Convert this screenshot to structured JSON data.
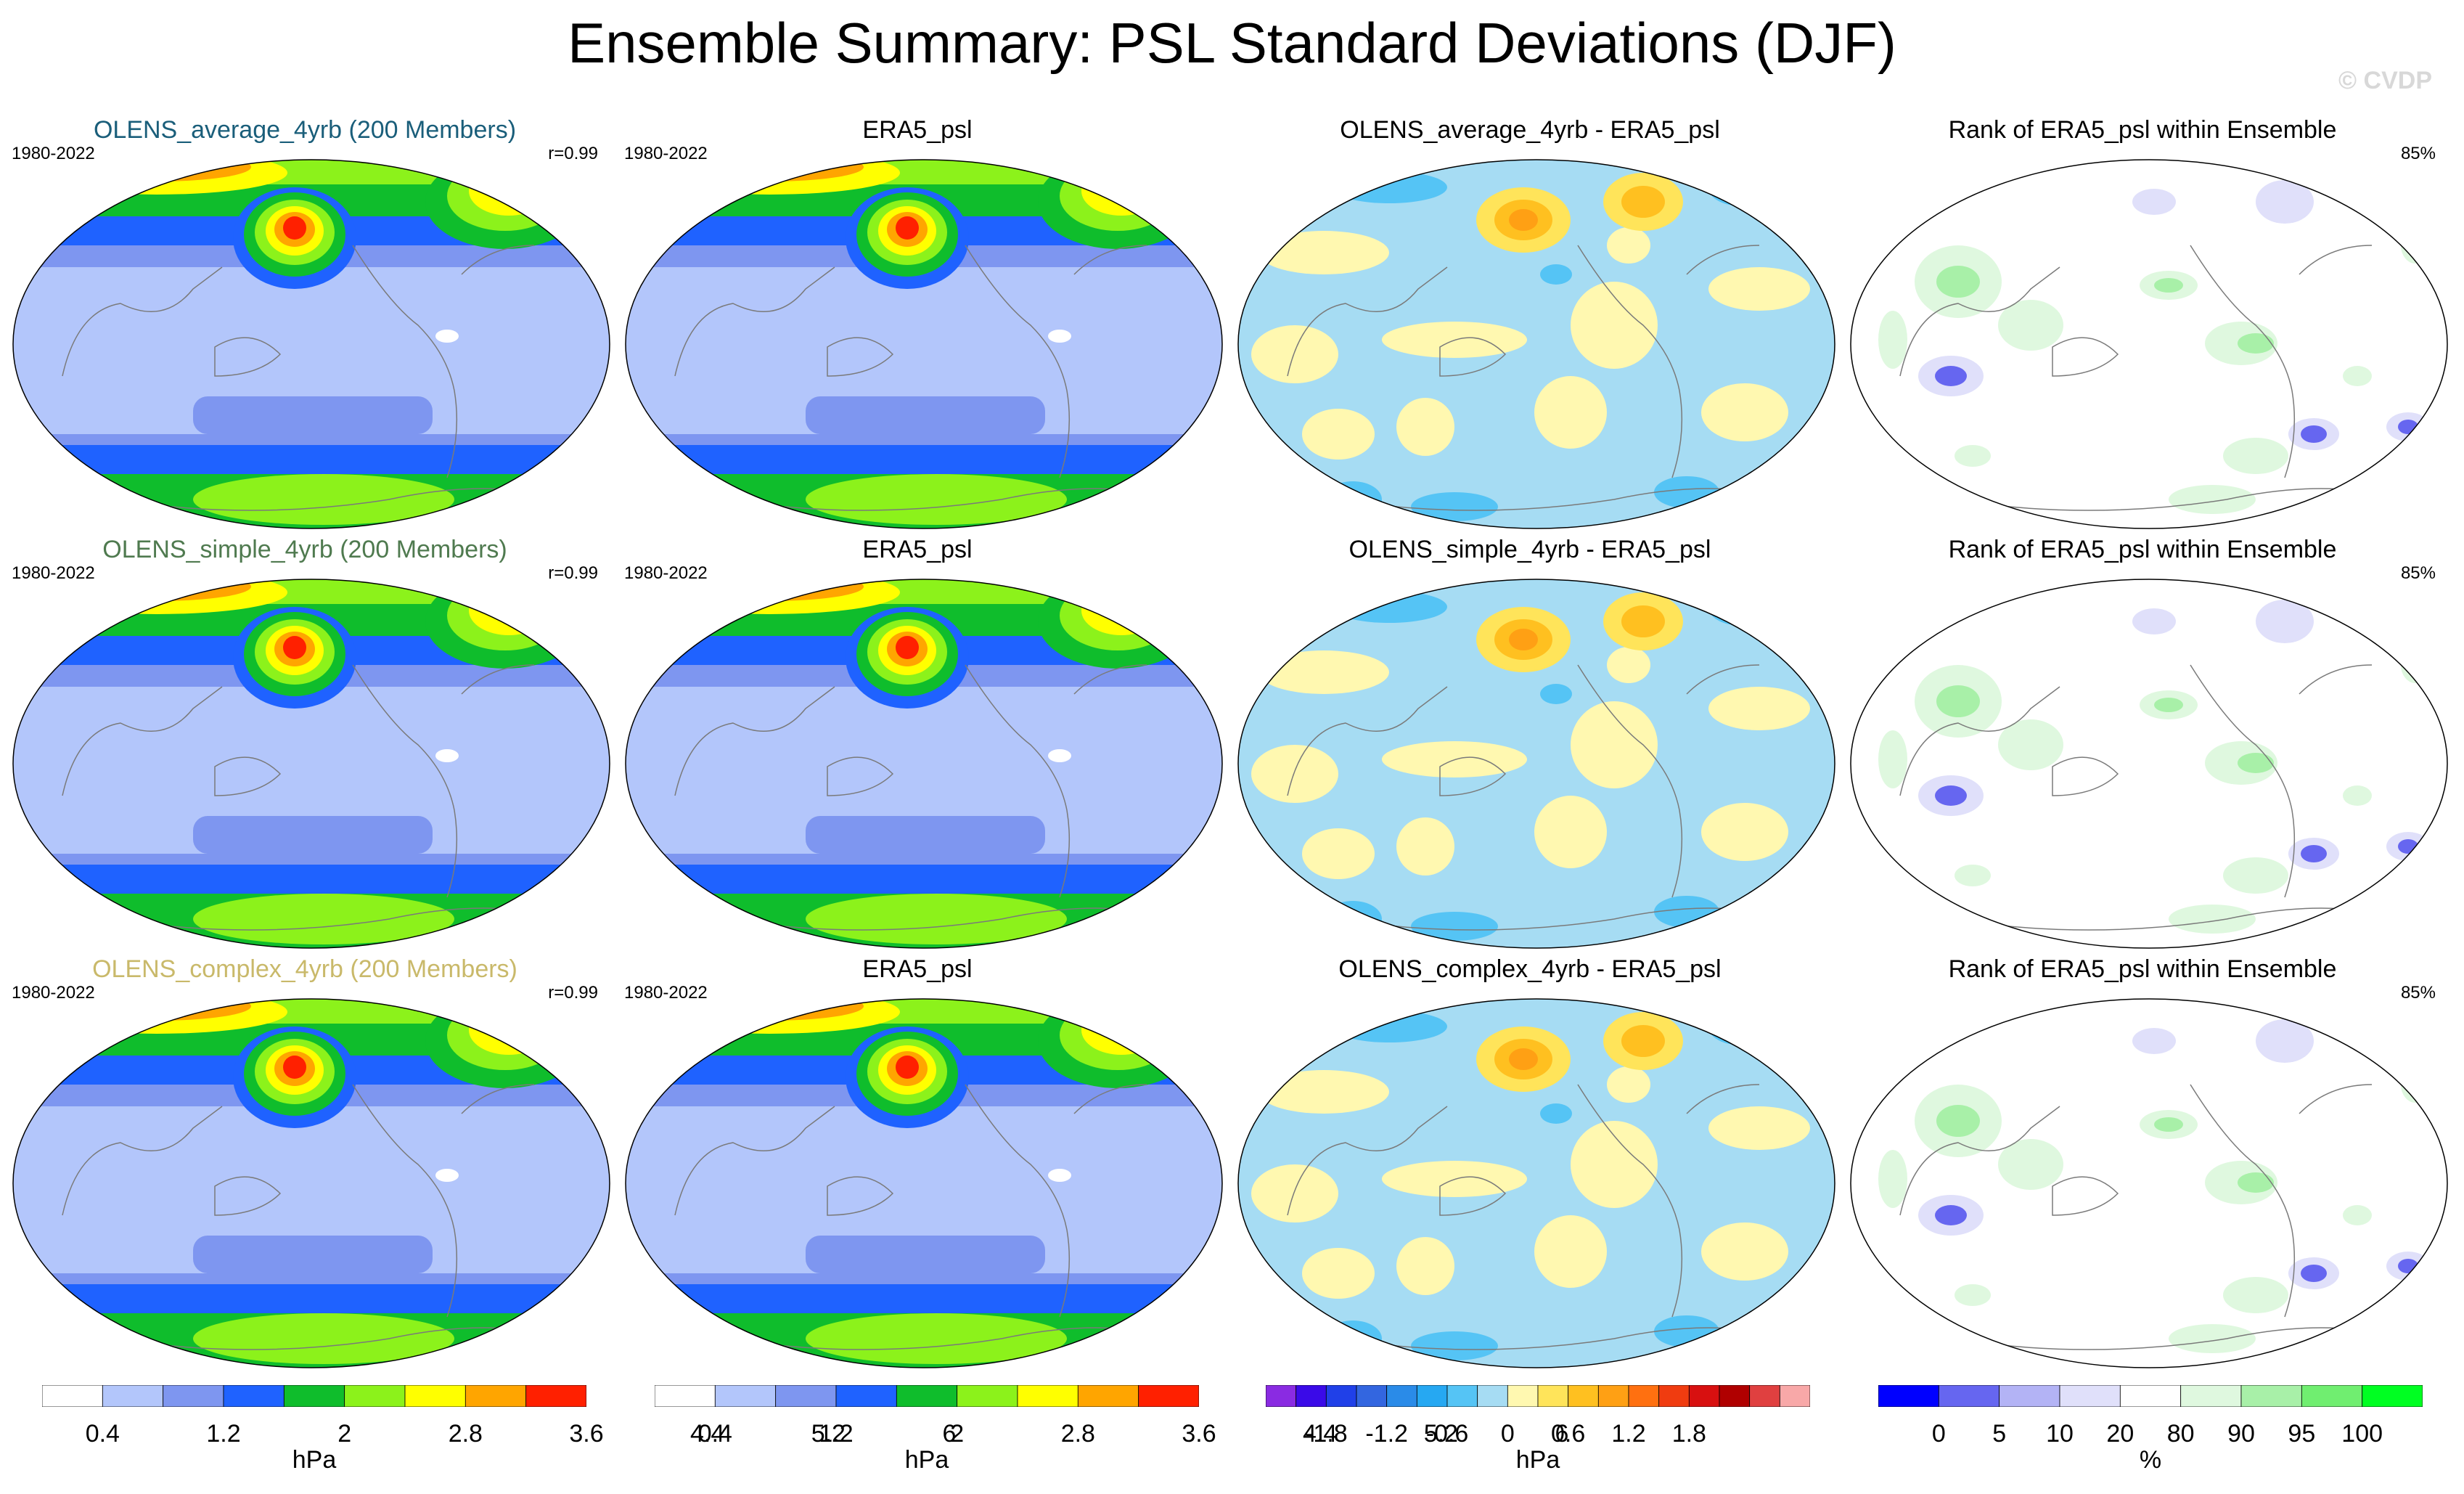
{
  "figure": {
    "title": "Ensemble Summary: PSL Standard Deviations (DJF)",
    "watermark": "© CVDP"
  },
  "rows": [
    {
      "model_title": "OLENS_average_4yrb (200 Members)",
      "model_title_color": "#1a5e7a",
      "model_period": "1980-2022",
      "pattern_corr": "r=0.99",
      "obs_title": "ERA5_psl",
      "obs_period": "1980-2022",
      "diff_title": "OLENS_average_4yrb - ERA5_psl",
      "rank_title": "Rank of ERA5_psl within Ensemble",
      "rank_pct": "85%"
    },
    {
      "model_title": "OLENS_simple_4yrb (200 Members)",
      "model_title_color": "#4f7a4f",
      "model_period": "1980-2022",
      "pattern_corr": "r=0.99",
      "obs_title": "ERA5_psl",
      "obs_period": "1980-2022",
      "diff_title": "OLENS_simple_4yrb - ERA5_psl",
      "rank_title": "Rank of ERA5_psl within Ensemble",
      "rank_pct": "85%"
    },
    {
      "model_title": "OLENS_complex_4yrb (200 Members)",
      "model_title_color": "#c9b96a",
      "model_period": "1980-2022",
      "pattern_corr": "r=0.99",
      "obs_title": "ERA5_psl",
      "obs_period": "1980-2022",
      "diff_title": "OLENS_complex_4yrb - ERA5_psl",
      "rank_title": "Rank of ERA5_psl within Ensemble",
      "rank_pct": "85%"
    }
  ],
  "chart_data": [
    {
      "type": "colorbar",
      "name": "stddev",
      "unit": "hPa",
      "levels": [
        0.4,
        0.8,
        1.2,
        1.6,
        2,
        2.4,
        2.8,
        3.2,
        3.6,
        4,
        4.4,
        4.8,
        5.2,
        5.6,
        6,
        6.4
      ],
      "tick_labels": [
        "0.4",
        "1.2",
        "2",
        "2.8",
        "3.6",
        "4.4",
        "5.2",
        "6"
      ],
      "colors": [
        "#ffffff",
        "#b3c6fb",
        "#7e96f0",
        "#1f62ff",
        "#0fbd2c",
        "#8cf21b",
        "#ffff00",
        "#ffa500",
        "#ff2000"
      ]
    },
    {
      "type": "colorbar",
      "name": "difference",
      "unit": "hPa",
      "levels": [
        -2.1,
        -1.8,
        -1.5,
        -1.2,
        -0.9,
        -0.6,
        -0.3,
        0,
        0.3,
        0.6,
        0.9,
        1.2,
        1.5,
        1.8,
        2.1
      ],
      "tick_labels": [
        "-1.8",
        "-1.2",
        "-0.6",
        "0",
        "0.6",
        "1.2",
        "1.8"
      ],
      "colors": [
        "#8a2be2",
        "#3a0ae8",
        "#2040e8",
        "#3366e0",
        "#2a8be8",
        "#26a8f2",
        "#55c4f5",
        "#a6dcf3",
        "#fff8b0",
        "#ffe45a",
        "#ffc020",
        "#ffa014",
        "#ff7010",
        "#f03c10",
        "#d81010",
        "#b00000",
        "#e04040",
        "#f8a8a8"
      ]
    },
    {
      "type": "colorbar",
      "name": "rank",
      "unit": "%",
      "levels": [
        0,
        5,
        10,
        20,
        80,
        90,
        95,
        100
      ],
      "tick_labels": [
        "0",
        "5",
        "10",
        "20",
        "80",
        "90",
        "95",
        "100"
      ],
      "colors": [
        "#0000ff",
        "#6666f0",
        "#b3b3f5",
        "#e0e0fa",
        "#ffffff",
        "#dff8df",
        "#a8f0a8",
        "#70ee70",
        "#00ff22"
      ]
    }
  ]
}
